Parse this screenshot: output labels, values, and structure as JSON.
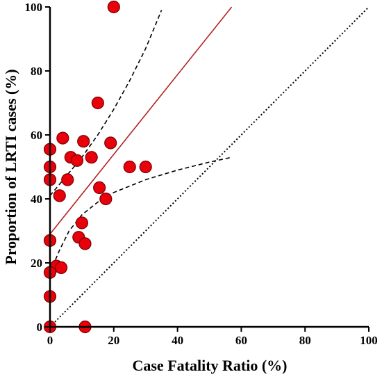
{
  "chart_data": {
    "type": "scatter",
    "title": "",
    "xlabel": "Case Fatality Ratio (%)",
    "ylabel": "Proportion of LRTI cases (%)",
    "xlim": [
      0,
      100
    ],
    "ylim": [
      0,
      100
    ],
    "xticks": [
      "0",
      "20",
      "40",
      "60",
      "80",
      "100"
    ],
    "yticks": [
      "0",
      "20",
      "40",
      "60",
      "80",
      "100"
    ],
    "grid": false,
    "legend": "none",
    "colors": {
      "point_fill": "#e8000b",
      "point_stroke": "#7a0000",
      "regression": "#b22222",
      "line": "#000000"
    },
    "points": [
      {
        "x": 20,
        "y": 100
      },
      {
        "x": 15,
        "y": 70
      },
      {
        "x": 4,
        "y": 59
      },
      {
        "x": 10.5,
        "y": 58
      },
      {
        "x": 19,
        "y": 57.5
      },
      {
        "x": 0,
        "y": 55.5
      },
      {
        "x": 6.5,
        "y": 53
      },
      {
        "x": 13,
        "y": 53
      },
      {
        "x": 8.5,
        "y": 52
      },
      {
        "x": 0,
        "y": 50
      },
      {
        "x": 25,
        "y": 50
      },
      {
        "x": 30,
        "y": 50
      },
      {
        "x": 0,
        "y": 46
      },
      {
        "x": 5.5,
        "y": 46
      },
      {
        "x": 15.5,
        "y": 43.5
      },
      {
        "x": 3,
        "y": 41
      },
      {
        "x": 17.5,
        "y": 40
      },
      {
        "x": 10,
        "y": 32.5
      },
      {
        "x": 9,
        "y": 28
      },
      {
        "x": 11,
        "y": 26
      },
      {
        "x": 0,
        "y": 27
      },
      {
        "x": 2,
        "y": 19
      },
      {
        "x": 3.5,
        "y": 18.5
      },
      {
        "x": 0,
        "y": 17
      },
      {
        "x": 0,
        "y": 9.5
      },
      {
        "x": 0,
        "y": 0
      },
      {
        "x": 11,
        "y": 0
      }
    ],
    "regression_line": [
      [
        0,
        29
      ],
      [
        57,
        100
      ]
    ],
    "identity_line": [
      [
        0,
        0
      ],
      [
        100,
        100
      ]
    ],
    "ci_upper": [
      [
        0,
        41
      ],
      [
        5,
        47
      ],
      [
        10,
        53
      ],
      [
        15,
        60
      ],
      [
        20,
        68
      ],
      [
        25,
        77
      ],
      [
        30,
        87
      ],
      [
        35,
        99
      ]
    ],
    "ci_lower": [
      [
        0,
        17
      ],
      [
        3,
        24
      ],
      [
        6,
        30
      ],
      [
        10,
        35
      ],
      [
        15,
        39
      ],
      [
        20,
        42
      ],
      [
        30,
        46
      ],
      [
        40,
        49
      ],
      [
        50,
        51.5
      ],
      [
        57,
        53
      ]
    ]
  }
}
